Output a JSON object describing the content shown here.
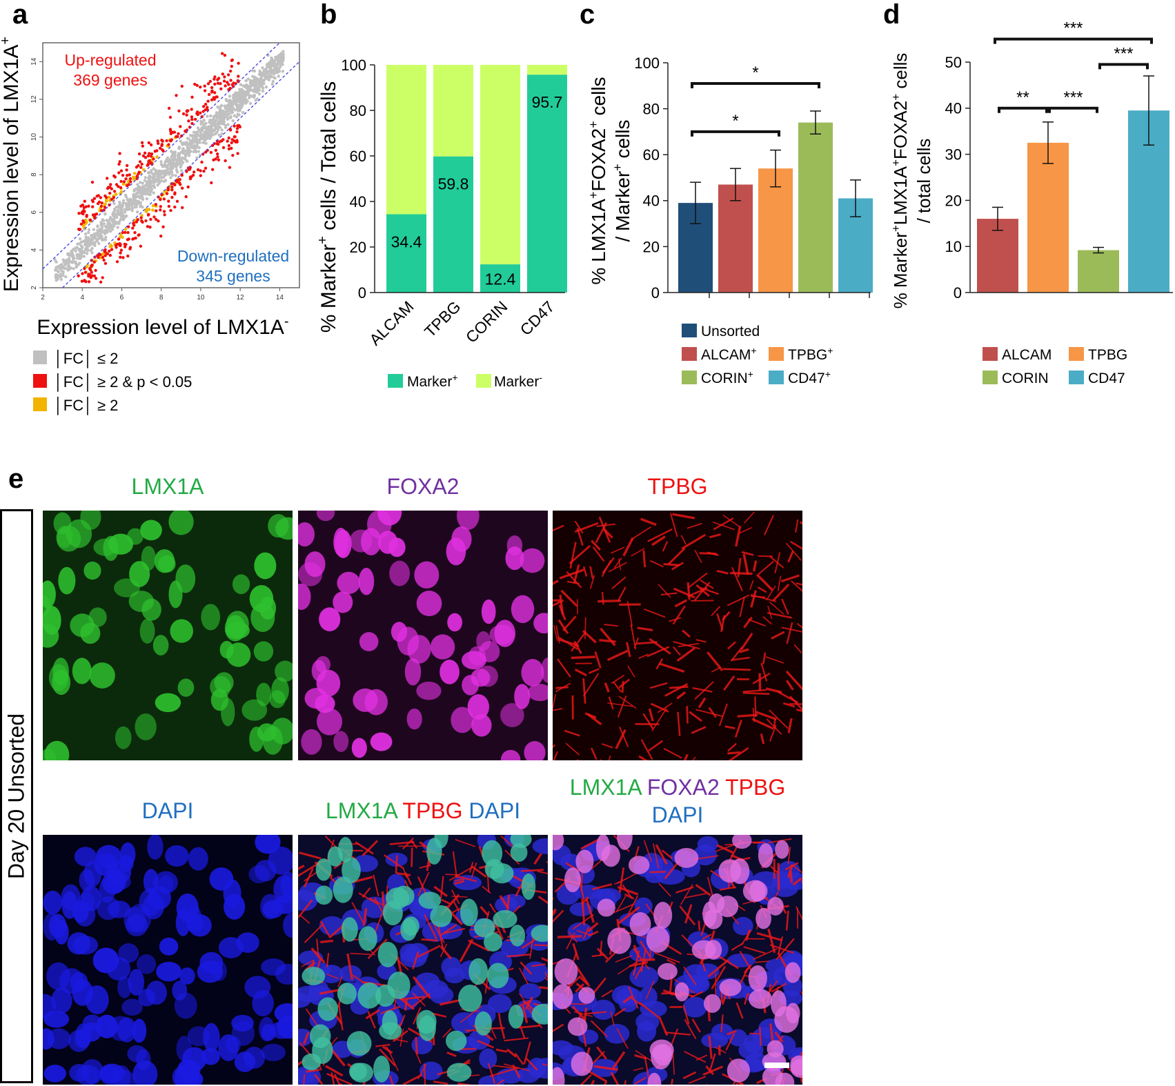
{
  "panel_letters": {
    "a": "a",
    "b": "b",
    "c": "c",
    "d": "d",
    "e": "e"
  },
  "colors": {
    "nonsig": "#c0c0c0",
    "up_sig": "#ee1111",
    "fc_only": "#f2b400",
    "marker_pos": "#22cc99",
    "marker_neg": "#ccff66",
    "unsorted": "#1f4e79",
    "alcam": "#c0504d",
    "tpbg": "#f79646",
    "corin": "#9bbb59",
    "cd47": "#4bacc6",
    "lmx1a_text": "#22aa44",
    "foxa2_text": "#7030a0",
    "tpbg_text": "#ee1111",
    "dapi_text": "#1f6fc0"
  },
  "chart_data": [
    {
      "id": "a",
      "type": "scatter",
      "title": "",
      "xlabel": "Expression level of LMX1A",
      "xlabel_sup": "-",
      "ylabel": "Expression level of LMX1A",
      "ylabel_sup": "+",
      "xlim": [
        2,
        15
      ],
      "ylim": [
        2,
        15
      ],
      "xticks": [
        "2",
        "4",
        "6",
        "8",
        "10",
        "12",
        "14"
      ],
      "yticks": [
        "2",
        "4",
        "6",
        "8",
        "10",
        "12",
        "14"
      ],
      "fold_change_lines": [
        1,
        -1
      ],
      "annotations": [
        {
          "line1": "Up-regulated",
          "line2": "369 genes",
          "color": "#ee1111"
        },
        {
          "line1": "Down-regulated",
          "line2": "345 genes",
          "color": "#1f6fc0"
        }
      ],
      "legend": [
        {
          "label": "│FC│ ≤ 2",
          "color": "#c0c0c0"
        },
        {
          "label": "│FC│ ≥ 2 & p < 0.05",
          "color": "#ee1111"
        },
        {
          "label": "│FC│ ≥ 2",
          "color": "#f2b400"
        }
      ],
      "up_regulated": 369,
      "down_regulated": 345
    },
    {
      "id": "b",
      "type": "bar",
      "stacked": true,
      "ylabel": "% Marker",
      "ylabel_sup": "+",
      "ylabel_tail": " cells / Total cells",
      "ylim": [
        0,
        100
      ],
      "yticks": [
        "0",
        "20",
        "40",
        "60",
        "80",
        "100"
      ],
      "categories": [
        "ALCAM",
        "TPBG",
        "CORIN",
        "CD47"
      ],
      "series": [
        {
          "name": "Marker",
          "sup": "+",
          "values": [
            34.4,
            59.8,
            12.4,
            95.7
          ],
          "color": "#22cc99"
        },
        {
          "name": "Marker",
          "sup": "-",
          "values": [
            65.6,
            40.2,
            87.6,
            4.3
          ],
          "color": "#ccff66"
        }
      ],
      "data_labels": [
        "34.4",
        "59.8",
        "12.4",
        "95.7"
      ]
    },
    {
      "id": "c",
      "type": "bar",
      "ylabel_line1_pre": "% LMX1A",
      "ylabel_line1_mid": "FOXA2",
      "ylabel_line1_tail": " cells",
      "ylabel_line2_pre": "/ Marker",
      "ylabel_line2_tail": " cells",
      "ylim": [
        0,
        100
      ],
      "yticks": [
        "0",
        "20",
        "40",
        "60",
        "80",
        "100"
      ],
      "categories": [
        "Unsorted",
        "ALCAM",
        "TPBG",
        "CORIN",
        "CD47"
      ],
      "values": [
        39,
        47,
        54,
        74,
        41
      ],
      "errors": [
        9,
        7,
        8,
        5,
        8
      ],
      "colors": [
        "#1f4e79",
        "#c0504d",
        "#f79646",
        "#9bbb59",
        "#4bacc6"
      ],
      "legend": [
        {
          "label": "Unsorted",
          "sup": "",
          "color": "#1f4e79"
        },
        {
          "label": "ALCAM",
          "sup": "+",
          "color": "#c0504d"
        },
        {
          "label": "TPBG",
          "sup": "+",
          "color": "#f79646"
        },
        {
          "label": "CORIN",
          "sup": "+",
          "color": "#9bbb59"
        },
        {
          "label": "CD47",
          "sup": "+",
          "color": "#4bacc6"
        }
      ],
      "significance": [
        {
          "from": 0,
          "to": 2,
          "label": "*",
          "level": 70
        },
        {
          "from": 0,
          "to": 3,
          "label": "*",
          "level": 91
        }
      ]
    },
    {
      "id": "d",
      "type": "bar",
      "ylabel_line1_pre": "% Marker",
      "ylabel_line1_mid1": "LMX1A",
      "ylabel_line1_mid2": "FOXA2",
      "ylabel_line1_tail": " cells",
      "ylabel_line2": "/ total cells",
      "ylim": [
        0,
        50
      ],
      "yticks": [
        "0",
        "10",
        "20",
        "30",
        "40",
        "50"
      ],
      "categories": [
        "ALCAM",
        "TPBG",
        "CORIN",
        "CD47"
      ],
      "values": [
        16,
        32.5,
        9.2,
        39.5
      ],
      "errors": [
        2.5,
        4.5,
        0.6,
        7.5
      ],
      "colors": [
        "#c0504d",
        "#f79646",
        "#9bbb59",
        "#4bacc6"
      ],
      "legend": [
        {
          "label": "ALCAM",
          "color": "#c0504d"
        },
        {
          "label": "TPBG",
          "color": "#f79646"
        },
        {
          "label": "CORIN",
          "color": "#9bbb59"
        },
        {
          "label": "CD47",
          "color": "#4bacc6"
        }
      ],
      "significance": [
        {
          "from": 0,
          "to": 1,
          "label": "**",
          "level": 40
        },
        {
          "from": 1,
          "to": 2,
          "label": "***",
          "level": 40
        },
        {
          "from": 2,
          "to": 3,
          "label": "***",
          "level": 49.5
        },
        {
          "from": 0,
          "to": 3,
          "label": "***",
          "level": 55
        }
      ]
    }
  ],
  "microscopy": {
    "row_label": "Day 20 Unsorted",
    "panels": [
      {
        "title": "LMX1A",
        "title_color": "#22aa44",
        "fill": "#0b2a0b",
        "cell_color": "#2ec02e",
        "type": "nuclei"
      },
      {
        "title": "FOXA2",
        "title_color": "#7030a0",
        "fill": "#1e061e",
        "cell_color": "#e030e0",
        "type": "nuclei"
      },
      {
        "title": "TPBG",
        "title_color": "#ee1111",
        "fill": "#140000",
        "cell_color": "#e01010",
        "type": "membrane"
      },
      {
        "title": "DAPI",
        "title_color": "#1f6fc0",
        "fill": "#020218",
        "cell_color": "#1a1ae0",
        "type": "nuclei"
      },
      {
        "title": "",
        "title_color": "",
        "fill": "#0a0a2a",
        "cell_color": "#40c0a0",
        "type": "merge1",
        "title_parts": [
          {
            "text": "LMX1A",
            "color": "#22aa44"
          },
          {
            "text": "TPBG",
            "color": "#ee1111"
          },
          {
            "text": "DAPI",
            "color": "#1f6fc0"
          }
        ]
      },
      {
        "title": "",
        "title_color": "",
        "fill": "#0a0a2a",
        "cell_color": "#e070e0",
        "type": "merge2",
        "title_parts": [
          {
            "text": "LMX1A",
            "color": "#22aa44"
          },
          {
            "text": "FOXA2",
            "color": "#7030a0"
          },
          {
            "text": "TPBG",
            "color": "#ee1111"
          },
          {
            "text": "DAPI",
            "color": "#1f6fc0"
          }
        ]
      }
    ]
  }
}
